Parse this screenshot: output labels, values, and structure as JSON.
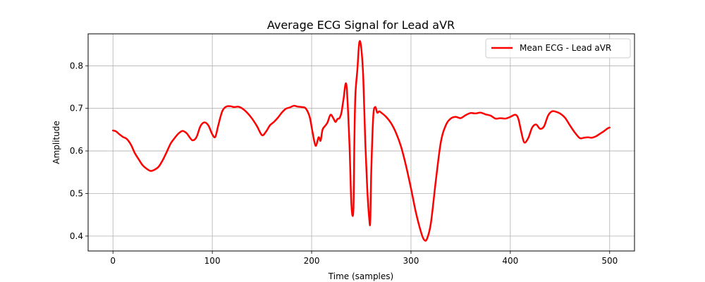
{
  "chart_data": {
    "type": "line",
    "title": "Average ECG Signal for Lead aVR",
    "xlabel": "Time (samples)",
    "ylabel": "Amplitude",
    "xlim": [
      -25,
      525
    ],
    "ylim": [
      0.365,
      0.875
    ],
    "xticks": [
      0,
      100,
      200,
      300,
      400,
      500
    ],
    "yticks": [
      0.4,
      0.5,
      0.6,
      0.7,
      0.8
    ],
    "xtick_labels": [
      "0",
      "100",
      "200",
      "300",
      "400",
      "500"
    ],
    "ytick_labels": [
      "0.4",
      "0.5",
      "0.6",
      "0.7",
      "0.8"
    ],
    "grid": true,
    "legend_position": "upper right",
    "series": [
      {
        "name": "Mean ECG - Lead aVR",
        "color": "#ff0000",
        "x": [
          0,
          3,
          6,
          10,
          14,
          18,
          22,
          26,
          30,
          34,
          38,
          42,
          46,
          50,
          54,
          58,
          62,
          66,
          70,
          74,
          76,
          80,
          84,
          88,
          92,
          96,
          100,
          103,
          106,
          110,
          114,
          118,
          122,
          126,
          130,
          135,
          140,
          145,
          150,
          154,
          158,
          162,
          166,
          170,
          174,
          178,
          182,
          186,
          190,
          194,
          198,
          201,
          204,
          207,
          209,
          211,
          214,
          216,
          219,
          222,
          224,
          226,
          228,
          230,
          232,
          235,
          238,
          240,
          242,
          243,
          244,
          246,
          248,
          250,
          252,
          254,
          256,
          258,
          259,
          260,
          262,
          264,
          266,
          268,
          270,
          275,
          280,
          285,
          290,
          295,
          300,
          305,
          310,
          313,
          316,
          320,
          325,
          330,
          335,
          340,
          345,
          350,
          355,
          360,
          365,
          370,
          375,
          380,
          385,
          390,
          395,
          400,
          405,
          408,
          411,
          414,
          418,
          422,
          426,
          430,
          434,
          438,
          442,
          446,
          450,
          455,
          460,
          465,
          470,
          474,
          478,
          482,
          486,
          490,
          494,
          498,
          500
        ],
        "y": [
          0.648,
          0.646,
          0.64,
          0.633,
          0.628,
          0.615,
          0.595,
          0.58,
          0.566,
          0.558,
          0.553,
          0.556,
          0.563,
          0.578,
          0.597,
          0.617,
          0.63,
          0.641,
          0.647,
          0.642,
          0.636,
          0.625,
          0.632,
          0.658,
          0.667,
          0.66,
          0.639,
          0.633,
          0.66,
          0.693,
          0.704,
          0.705,
          0.703,
          0.704,
          0.7,
          0.69,
          0.676,
          0.658,
          0.637,
          0.645,
          0.66,
          0.668,
          0.678,
          0.69,
          0.699,
          0.702,
          0.706,
          0.704,
          0.703,
          0.7,
          0.68,
          0.643,
          0.612,
          0.632,
          0.624,
          0.65,
          0.66,
          0.667,
          0.685,
          0.676,
          0.668,
          0.675,
          0.677,
          0.69,
          0.72,
          0.755,
          0.62,
          0.475,
          0.46,
          0.62,
          0.73,
          0.79,
          0.855,
          0.84,
          0.77,
          0.62,
          0.51,
          0.44,
          0.435,
          0.55,
          0.68,
          0.703,
          0.69,
          0.693,
          0.69,
          0.68,
          0.665,
          0.642,
          0.61,
          0.565,
          0.512,
          0.455,
          0.41,
          0.392,
          0.393,
          0.43,
          0.53,
          0.62,
          0.66,
          0.676,
          0.68,
          0.677,
          0.684,
          0.689,
          0.688,
          0.69,
          0.686,
          0.683,
          0.676,
          0.677,
          0.676,
          0.68,
          0.685,
          0.676,
          0.645,
          0.62,
          0.63,
          0.655,
          0.662,
          0.652,
          0.658,
          0.683,
          0.693,
          0.692,
          0.688,
          0.678,
          0.66,
          0.643,
          0.63,
          0.631,
          0.632,
          0.631,
          0.634,
          0.64,
          0.646,
          0.653,
          0.655
        ]
      }
    ]
  }
}
